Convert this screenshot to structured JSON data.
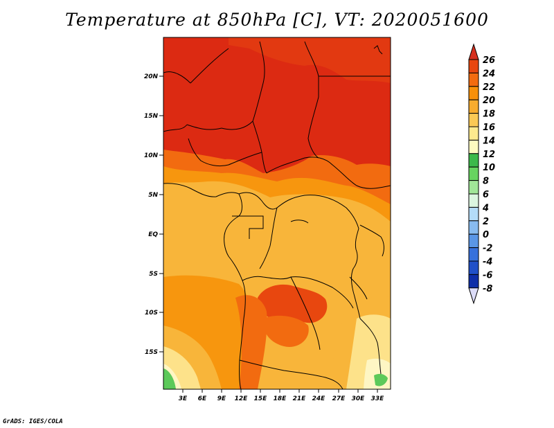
{
  "title": "Temperature at 850hPa [C], VT: 2020051600",
  "credit": "GrADS: IGES/COLA",
  "lat_labels": [
    "20N",
    "15N",
    "10N",
    "5N",
    "EQ",
    "5S",
    "10S",
    "15S"
  ],
  "lon_labels": [
    "3E",
    "6E",
    "9E",
    "12E",
    "15E",
    "18E",
    "21E",
    "24E",
    "27E",
    "30E",
    "33E"
  ],
  "colorbar": {
    "levels": [
      "26",
      "24",
      "22",
      "20",
      "18",
      "16",
      "14",
      "12",
      "10",
      "8",
      "6",
      "4",
      "2",
      "0",
      "-2",
      "-4",
      "-6",
      "-8"
    ],
    "colors": [
      "#d7301f",
      "#e8470f",
      "#f26b10",
      "#f7900a",
      "#f8ac2e",
      "#fbc955",
      "#fde98e",
      "#fefbc0",
      "#3cb94a",
      "#67d460",
      "#a1e698",
      "#dcf6e0",
      "#b4dcf8",
      "#88bbf0",
      "#5a96e6",
      "#3771dc",
      "#2050c8",
      "#0e2ea8",
      "#0a1876"
    ]
  },
  "colors": {
    "hot": "#dc2a12",
    "warm": "#f26b10",
    "mild": "#f7960e",
    "cool": "#f8b53a",
    "pale": "#fde28a",
    "cream": "#fef6c4",
    "green": "#5cc95a"
  }
}
